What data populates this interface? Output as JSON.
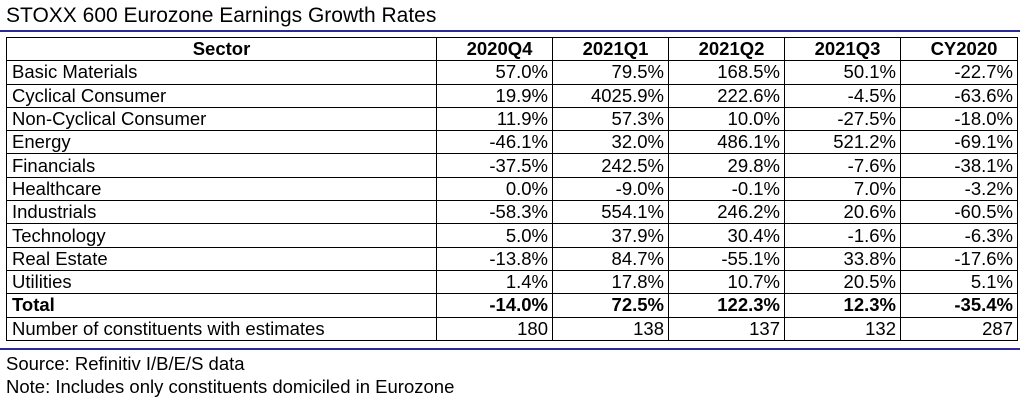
{
  "title": "STOXX 600 Eurozone Earnings Growth Rates",
  "table": {
    "headers": [
      "Sector",
      "2020Q4",
      "2021Q1",
      "2021Q2",
      "2021Q3",
      "CY2020"
    ],
    "rows": [
      {
        "sector": "Basic Materials",
        "values": [
          "57.0%",
          "79.5%",
          "168.5%",
          "50.1%",
          "-22.7%"
        ]
      },
      {
        "sector": "Cyclical Consumer",
        "values": [
          "19.9%",
          "4025.9%",
          "222.6%",
          "-4.5%",
          "-63.6%"
        ]
      },
      {
        "sector": "Non-Cyclical Consumer",
        "values": [
          "11.9%",
          "57.3%",
          "10.0%",
          "-27.5%",
          "-18.0%"
        ]
      },
      {
        "sector": "Energy",
        "values": [
          "-46.1%",
          "32.0%",
          "486.1%",
          "521.2%",
          "-69.1%"
        ]
      },
      {
        "sector": "Financials",
        "values": [
          "-37.5%",
          "242.5%",
          "29.8%",
          "-7.6%",
          "-38.1%"
        ]
      },
      {
        "sector": "Healthcare",
        "values": [
          "0.0%",
          "-9.0%",
          "-0.1%",
          "7.0%",
          "-3.2%"
        ]
      },
      {
        "sector": "Industrials",
        "values": [
          "-58.3%",
          "554.1%",
          "246.2%",
          "20.6%",
          "-60.5%"
        ]
      },
      {
        "sector": "Technology",
        "values": [
          "5.0%",
          "37.9%",
          "30.4%",
          "-1.6%",
          "-6.3%"
        ]
      },
      {
        "sector": "Real Estate",
        "values": [
          "-13.8%",
          "84.7%",
          "-55.1%",
          "33.8%",
          "-17.6%"
        ]
      },
      {
        "sector": "Utilities",
        "values": [
          "1.4%",
          "17.8%",
          "10.7%",
          "20.5%",
          "5.1%"
        ]
      }
    ],
    "total": {
      "sector": "Total",
      "values": [
        "-14.0%",
        "72.5%",
        "122.3%",
        "12.3%",
        "-35.4%"
      ]
    },
    "constituents": {
      "sector": "Number of constituents with estimates",
      "values": [
        "180",
        "138",
        "137",
        "132",
        "287"
      ]
    }
  },
  "source": "Source: Refinitiv I/B/E/S data",
  "note": "Note: Includes only constituents domiciled in Eurozone",
  "colors": {
    "rule": "#2a2a9c",
    "text": "#000000",
    "border": "#000000"
  }
}
